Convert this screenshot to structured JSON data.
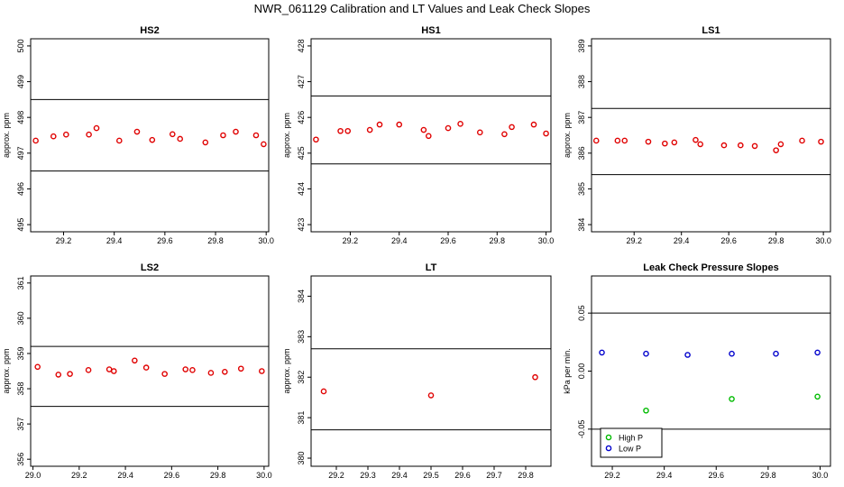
{
  "title": "NWR_061129  Calibration and LT Values and Leak Check Slopes",
  "chart_data": [
    {
      "type": "scatter",
      "title": "HS2",
      "ylabel": "approx. ppm",
      "xlim": [
        29.07,
        30.01
      ],
      "ylim": [
        494.8,
        500.2
      ],
      "xticks": [
        "29.2",
        "29.4",
        "29.6",
        "29.8",
        "30.0"
      ],
      "xtick_values": [
        29.2,
        29.4,
        29.6,
        29.8,
        30.0
      ],
      "yticks": [
        "495",
        "496",
        "497",
        "498",
        "499",
        "500"
      ],
      "ytick_values": [
        495,
        496,
        497,
        498,
        499,
        500
      ],
      "hlines": [
        498.5,
        496.5
      ],
      "series": [
        {
          "color": "#e00000",
          "x": [
            29.09,
            29.16,
            29.21,
            29.3,
            29.33,
            29.42,
            29.49,
            29.55,
            29.63,
            29.66,
            29.76,
            29.83,
            29.88,
            29.96,
            29.99
          ],
          "y": [
            497.35,
            497.47,
            497.52,
            497.52,
            497.7,
            497.35,
            497.6,
            497.37,
            497.53,
            497.4,
            497.3,
            497.5,
            497.6,
            497.5,
            497.25
          ]
        }
      ]
    },
    {
      "type": "scatter",
      "title": "HS1",
      "ylabel": "approx. ppm",
      "xlim": [
        29.04,
        30.02
      ],
      "ylim": [
        422.8,
        428.2
      ],
      "xticks": [
        "29.2",
        "29.4",
        "29.6",
        "29.8",
        "30.0"
      ],
      "xtick_values": [
        29.2,
        29.4,
        29.6,
        29.8,
        30.0
      ],
      "yticks": [
        "423",
        "424",
        "425",
        "426",
        "427",
        "428"
      ],
      "ytick_values": [
        423,
        424,
        425,
        426,
        427,
        428
      ],
      "hlines": [
        426.6,
        424.7
      ],
      "series": [
        {
          "color": "#e00000",
          "x": [
            29.06,
            29.16,
            29.19,
            29.28,
            29.32,
            29.4,
            29.5,
            29.52,
            29.6,
            29.65,
            29.73,
            29.83,
            29.86,
            29.95,
            30.0
          ],
          "y": [
            425.38,
            425.62,
            425.62,
            425.65,
            425.8,
            425.8,
            425.65,
            425.48,
            425.7,
            425.82,
            425.58,
            425.53,
            425.73,
            425.8,
            425.55
          ]
        }
      ]
    },
    {
      "type": "scatter",
      "title": "LS1",
      "ylabel": "approx. ppm",
      "xlim": [
        29.02,
        30.03
      ],
      "ylim": [
        383.8,
        389.2
      ],
      "xticks": [
        "29.2",
        "29.4",
        "29.6",
        "29.8",
        "30.0"
      ],
      "xtick_values": [
        29.2,
        29.4,
        29.6,
        29.8,
        30.0
      ],
      "yticks": [
        "384",
        "385",
        "386",
        "387",
        "388",
        "389"
      ],
      "ytick_values": [
        384,
        385,
        386,
        387,
        388,
        389
      ],
      "hlines": [
        387.25,
        385.4
      ],
      "series": [
        {
          "color": "#e00000",
          "x": [
            29.04,
            29.13,
            29.16,
            29.26,
            29.33,
            29.37,
            29.46,
            29.48,
            29.58,
            29.65,
            29.71,
            29.8,
            29.82,
            29.91,
            29.99
          ],
          "y": [
            386.35,
            386.35,
            386.35,
            386.32,
            386.27,
            386.3,
            386.37,
            386.25,
            386.22,
            386.22,
            386.2,
            386.08,
            386.25,
            386.35,
            386.32
          ]
        }
      ]
    },
    {
      "type": "scatter",
      "title": "LS2",
      "ylabel": "approx. ppm",
      "xlim": [
        28.99,
        30.02
      ],
      "ylim": [
        355.8,
        361.2
      ],
      "xticks": [
        "29.0",
        "29.2",
        "29.4",
        "29.6",
        "29.8",
        "30.0"
      ],
      "xtick_values": [
        29.0,
        29.2,
        29.4,
        29.6,
        29.8,
        30.0
      ],
      "yticks": [
        "356",
        "357",
        "358",
        "359",
        "360",
        "361"
      ],
      "ytick_values": [
        356,
        357,
        358,
        359,
        360,
        361
      ],
      "hlines": [
        359.2,
        357.5
      ],
      "series": [
        {
          "color": "#e00000",
          "x": [
            29.02,
            29.11,
            29.16,
            29.24,
            29.33,
            29.35,
            29.44,
            29.49,
            29.57,
            29.66,
            29.69,
            29.77,
            29.83,
            29.9,
            29.99
          ],
          "y": [
            358.62,
            358.4,
            358.42,
            358.53,
            358.55,
            358.5,
            358.8,
            358.6,
            358.42,
            358.55,
            358.53,
            358.45,
            358.48,
            358.57,
            358.5
          ]
        }
      ]
    },
    {
      "type": "scatter",
      "title": "LT",
      "ylabel": "approx. ppm",
      "xlim": [
        29.12,
        29.88
      ],
      "ylim": [
        379.8,
        384.5
      ],
      "xticks": [
        "29.2",
        "29.3",
        "29.4",
        "29.5",
        "29.6",
        "29.7",
        "29.8"
      ],
      "xtick_values": [
        29.2,
        29.3,
        29.4,
        29.5,
        29.6,
        29.7,
        29.8
      ],
      "yticks": [
        "380",
        "381",
        "382",
        "383",
        "384"
      ],
      "ytick_values": [
        380,
        381,
        382,
        383,
        384
      ],
      "hlines": [
        382.7,
        380.7
      ],
      "series": [
        {
          "color": "#e00000",
          "x": [
            29.16,
            29.5,
            29.83
          ],
          "y": [
            381.65,
            381.55,
            382.0
          ]
        }
      ]
    },
    {
      "type": "scatter",
      "title": "Leak Check Pressure Slopes",
      "ylabel": "kPa per min.",
      "xlim": [
        29.12,
        30.04
      ],
      "ylim": [
        -0.082,
        0.082
      ],
      "xticks": [
        "29.2",
        "29.4",
        "29.6",
        "29.8",
        "30.0"
      ],
      "xtick_values": [
        29.2,
        29.4,
        29.6,
        29.8,
        30.0
      ],
      "yticks": [
        "-0.05",
        "0.00",
        "0.05"
      ],
      "ytick_values": [
        -0.05,
        0.0,
        0.05
      ],
      "hlines": [
        0.05,
        -0.05
      ],
      "legend_position": "bottom-left",
      "series": [
        {
          "name": "High P",
          "color": "#00bb00",
          "x": [
            29.33,
            29.66,
            29.99
          ],
          "y": [
            -0.034,
            -0.024,
            -0.022
          ]
        },
        {
          "name": "Low P",
          "color": "#0000cc",
          "x": [
            29.16,
            29.33,
            29.49,
            29.66,
            29.83,
            29.99
          ],
          "y": [
            0.016,
            0.015,
            0.014,
            0.015,
            0.015,
            0.016
          ]
        }
      ]
    }
  ]
}
